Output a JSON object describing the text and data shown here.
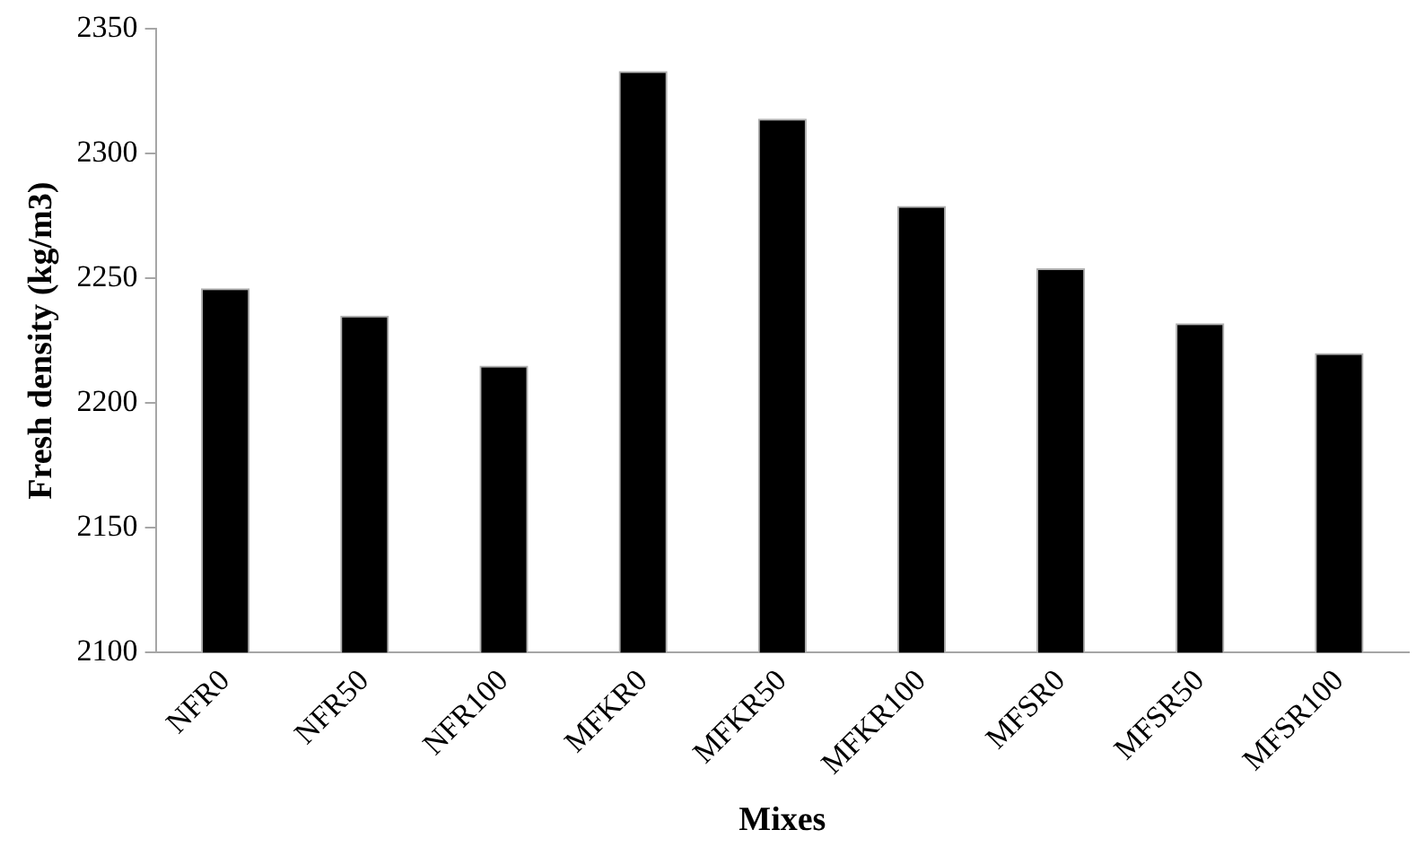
{
  "chart_data": {
    "type": "bar",
    "xlabel": "Mixes",
    "ylabel": "Fresh density (kg/m3)",
    "categories": [
      "NFR0",
      "NFR50",
      "NFR100",
      "MFKR0",
      "MFKR50",
      "MFKR100",
      "MFSR0",
      "MFSR50",
      "MFSR100"
    ],
    "values": [
      2246,
      2235,
      2215,
      2333,
      2314,
      2279,
      2254,
      2232,
      2220
    ],
    "color": "#000000",
    "ylim": [
      2100,
      2350
    ],
    "yticks": [
      2100,
      2150,
      2200,
      2250,
      2300,
      2350
    ],
    "grid": false,
    "legend": false
  }
}
